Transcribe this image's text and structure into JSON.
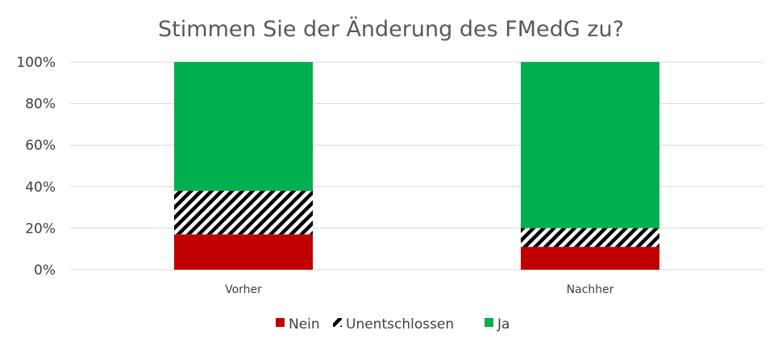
{
  "chart_data": {
    "type": "bar",
    "stacked": true,
    "percent_stacked": true,
    "title": "Stimmen Sie der Änderung des FMedG zu?",
    "xlabel": "",
    "ylabel": "",
    "categories": [
      "Vorher",
      "Nachher"
    ],
    "series": [
      {
        "name": "Nein",
        "values": [
          0.17,
          0.11
        ],
        "color": "#c00000",
        "pattern": "solid"
      },
      {
        "name": "Unentschlossen",
        "values": [
          0.21,
          0.09
        ],
        "color": "#000000",
        "pattern": "diagonal-stripes"
      },
      {
        "name": "Ja",
        "values": [
          0.62,
          0.8
        ],
        "color": "#00b050",
        "pattern": "solid"
      }
    ],
    "ylim": [
      0,
      1
    ],
    "yticks": [
      "0%",
      "20%",
      "40%",
      "60%",
      "80%",
      "100%"
    ],
    "grid": true,
    "legend_position": "bottom"
  }
}
